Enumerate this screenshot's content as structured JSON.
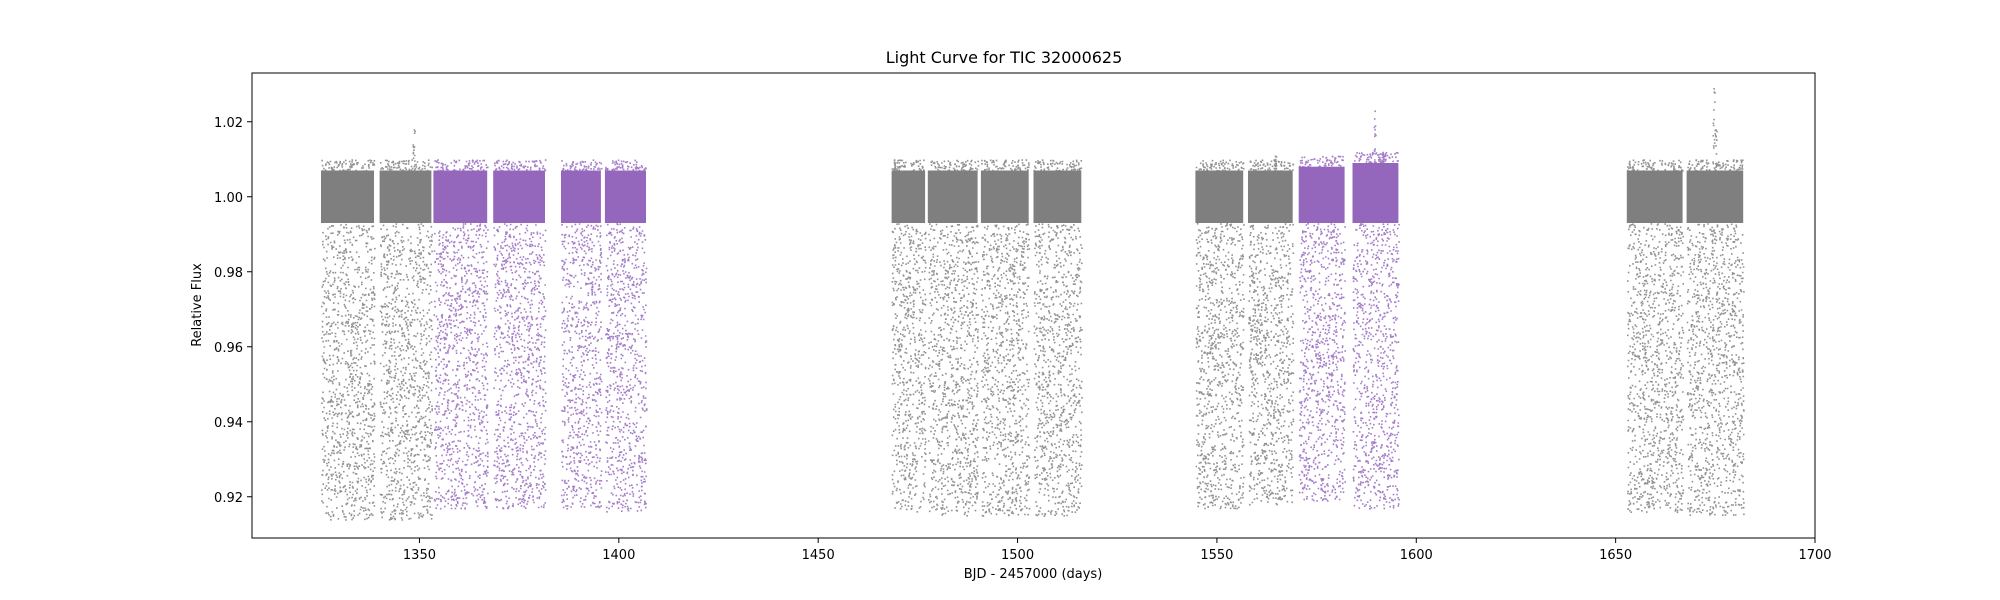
{
  "chart_data": {
    "type": "scatter",
    "title": "Light Curve for TIC 32000625",
    "xlabel": "BJD - 2457000 (days)",
    "ylabel": "Relative Flux",
    "xlim": [
      1308,
      1700
    ],
    "ylim": [
      0.909,
      1.033
    ],
    "xticks": [
      1350,
      1400,
      1450,
      1500,
      1550,
      1600,
      1650,
      1700
    ],
    "yticks": [
      0.92,
      0.94,
      0.96,
      0.98,
      1.0,
      1.02
    ],
    "ytick_labels": [
      "0.92",
      "0.94",
      "0.96",
      "0.98",
      "1.00",
      "1.02"
    ],
    "grid": false,
    "legend": "none",
    "colors": {
      "gray": "#7f7f7f",
      "purple": "#9467bd"
    },
    "series": [
      {
        "color": "gray",
        "segments": [
          {
            "x": [
              1325.3,
              1338.6
            ],
            "core": [
              0.993,
              1.007
            ],
            "min": 0.914
          },
          {
            "x": [
              1340.0,
              1353.0
            ],
            "core": [
              0.993,
              1.007
            ],
            "min": 0.914,
            "flares": [
              [
                1348.5,
                1.018
              ]
            ]
          },
          {
            "x": [
              1468.4,
              1476.8
            ],
            "core": [
              0.993,
              1.007
            ],
            "min": 0.916,
            "flares": [
              [
                1469.0,
                1.01
              ]
            ]
          },
          {
            "x": [
              1477.5,
              1490.0
            ],
            "core": [
              0.993,
              1.007
            ],
            "min": 0.915
          },
          {
            "x": [
              1490.8,
              1502.8
            ],
            "core": [
              0.993,
              1.007
            ],
            "min": 0.915
          },
          {
            "x": [
              1504.0,
              1516.0
            ],
            "core": [
              0.993,
              1.007
            ],
            "min": 0.915
          },
          {
            "x": [
              1544.6,
              1556.6
            ],
            "core": [
              0.993,
              1.007
            ],
            "min": 0.917
          },
          {
            "x": [
              1557.8,
              1569.0
            ],
            "core": [
              0.993,
              1.007
            ],
            "min": 0.918,
            "flares": [
              [
                1564.5,
                1.011
              ]
            ]
          },
          {
            "x": [
              1652.8,
              1666.8
            ],
            "core": [
              0.993,
              1.007
            ],
            "min": 0.916
          },
          {
            "x": [
              1667.8,
              1682.0
            ],
            "core": [
              0.993,
              1.007
            ],
            "min": 0.915,
            "flares": [
              [
                1674.5,
                1.029
              ],
              [
                1675.0,
                1.018
              ]
            ]
          }
        ]
      },
      {
        "color": "purple",
        "segments": [
          {
            "x": [
              1353.5,
              1367.0
            ],
            "core": [
              0.993,
              1.007
            ],
            "min": 0.917
          },
          {
            "x": [
              1368.5,
              1381.5
            ],
            "core": [
              0.993,
              1.007
            ],
            "min": 0.917
          },
          {
            "x": [
              1385.5,
              1395.5
            ],
            "core": [
              0.993,
              1.007
            ],
            "min": 0.917
          },
          {
            "x": [
              1396.5,
              1406.8
            ],
            "core": [
              0.993,
              1.007
            ],
            "min": 0.916
          },
          {
            "x": [
              1570.5,
              1582.0
            ],
            "core": [
              0.993,
              1.008
            ],
            "min": 0.919
          },
          {
            "x": [
              1584.0,
              1595.5
            ],
            "core": [
              0.993,
              1.009
            ],
            "min": 0.917,
            "flares": [
              [
                1589.5,
                1.023
              ],
              [
                1591.5,
                1.012
              ]
            ]
          }
        ]
      }
    ]
  }
}
